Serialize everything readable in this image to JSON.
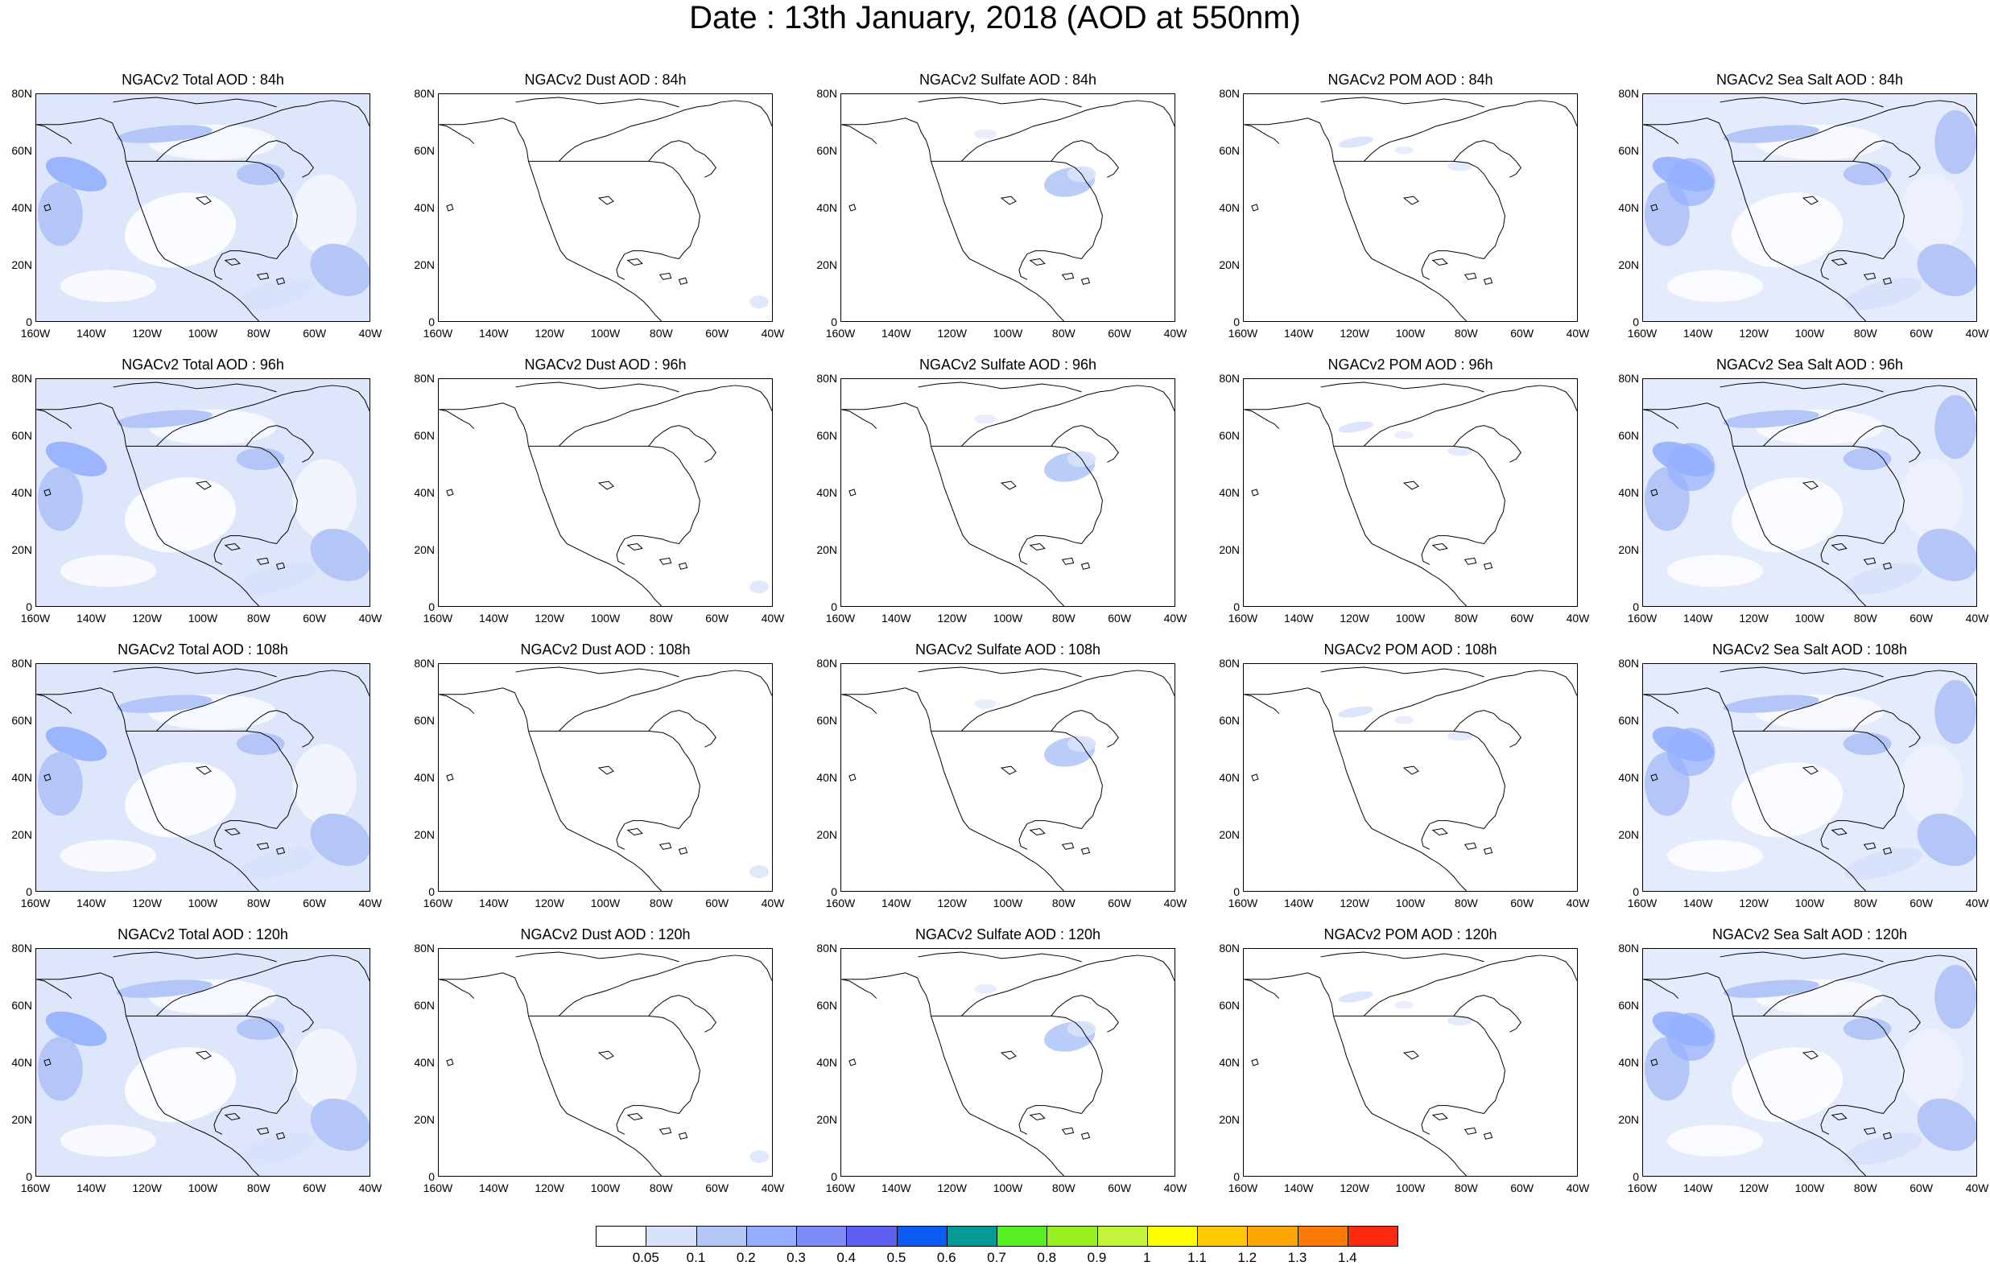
{
  "title": "Date : 13th January, 2018 (AOD at 550nm)",
  "rows": [
    {
      "panels": [
        {
          "title": "NGACv2 Total AOD : 84h",
          "species": "total"
        },
        {
          "title": "NGACv2 Dust AOD : 84h",
          "species": "dust"
        },
        {
          "title": "NGACv2 Sulfate AOD : 84h",
          "species": "sulfate"
        },
        {
          "title": "NGACv2 POM AOD : 84h",
          "species": "pom"
        },
        {
          "title": "NGACv2 Sea Salt AOD : 84h",
          "species": "seasalt"
        }
      ]
    },
    {
      "panels": [
        {
          "title": "NGACv2 Total AOD : 96h",
          "species": "total"
        },
        {
          "title": "NGACv2 Dust AOD : 96h",
          "species": "dust"
        },
        {
          "title": "NGACv2 Sulfate AOD : 96h",
          "species": "sulfate"
        },
        {
          "title": "NGACv2 POM AOD : 96h",
          "species": "pom"
        },
        {
          "title": "NGACv2 Sea Salt AOD : 96h",
          "species": "seasalt"
        }
      ]
    },
    {
      "panels": [
        {
          "title": "NGACv2 Total AOD : 108h",
          "species": "total"
        },
        {
          "title": "NGACv2 Dust AOD : 108h",
          "species": "dust"
        },
        {
          "title": "NGACv2 Sulfate AOD : 108h",
          "species": "sulfate"
        },
        {
          "title": "NGACv2 POM AOD : 108h",
          "species": "pom"
        },
        {
          "title": "NGACv2 Sea Salt AOD : 108h",
          "species": "seasalt"
        }
      ]
    },
    {
      "panels": [
        {
          "title": "NGACv2 Total AOD : 120h",
          "species": "total"
        },
        {
          "title": "NGACv2 Dust AOD : 120h",
          "species": "dust"
        },
        {
          "title": "NGACv2 Sulfate AOD : 120h",
          "species": "sulfate"
        },
        {
          "title": "NGACv2 POM AOD : 120h",
          "species": "pom"
        },
        {
          "title": "NGACv2 Sea Salt  AOD : 120h",
          "species": "seasalt"
        }
      ]
    }
  ],
  "y_ticks": [
    "80N",
    "60N",
    "40N",
    "20N",
    "0"
  ],
  "x_ticks": [
    "160W",
    "140W",
    "120W",
    "100W",
    "80W",
    "60W",
    "40W"
  ],
  "colorbar": {
    "colors": [
      "#ffffff",
      "#d8e2fb",
      "#b3c6f7",
      "#94afff",
      "#7f8cf5",
      "#5f5ff0",
      "#0a5cf5",
      "#009b96",
      "#55f023",
      "#99f020",
      "#c5f53a",
      "#ffff00",
      "#ffc800",
      "#ffa600",
      "#ff7a00",
      "#ff2a10"
    ],
    "labels": [
      "0.05",
      "0.1",
      "0.2",
      "0.3",
      "0.4",
      "0.5",
      "0.6",
      "0.7",
      "0.8",
      "0.9",
      "1",
      "1.1",
      "1.2",
      "1.3",
      "1.4"
    ]
  }
}
